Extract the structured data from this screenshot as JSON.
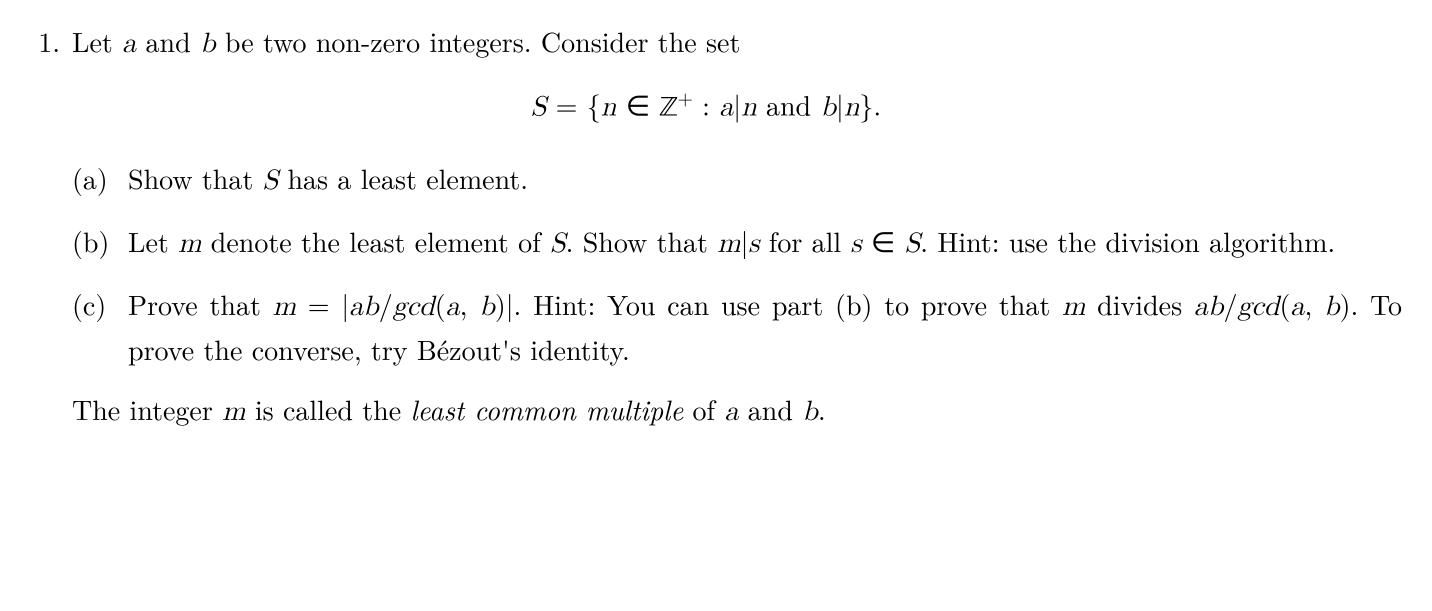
{
  "problem": {
    "number": "1.",
    "intro_prefix": "Let ",
    "var_a": "a",
    "intro_and": " and ",
    "var_b": "b",
    "intro_suffix": " be two non-zero integers. Consider the set",
    "equation": {
      "S": "S",
      "eq": " = {",
      "n": "n",
      "in": " ∈ ",
      "Z": "ℤ",
      "plus": "+",
      "colon": " : ",
      "a": "a",
      "div1": "|",
      "n2": "n",
      "and": " and ",
      "b": "b",
      "div2": "|",
      "n3": "n",
      "close": "}."
    },
    "parts": {
      "a": {
        "label": "(a)",
        "text_pre": "Show that ",
        "S": "S",
        "text_post": " has a least element."
      },
      "b": {
        "label": "(b)",
        "t1": "Let ",
        "m": "m",
        "t2": " denote the least element of ",
        "S": "S",
        "t3": ". Show that ",
        "m2": "m",
        "div": "|",
        "s": "s",
        "t4": " for all ",
        "s2": "s",
        "in": " ∈ ",
        "S2": "S",
        "t5": ". Hint: use the division algorithm."
      },
      "c": {
        "label": "(c)",
        "t1": "Prove that ",
        "m": "m",
        "eq": " = |",
        "ab": "ab",
        "slash": "/",
        "gcd1": "gcd",
        "paren1": "(",
        "a1": "a",
        "comma1": ", ",
        "b1": "b",
        "paren1c": ")|",
        "t2": ". Hint: You can use part (b) to prove that ",
        "m2": "m",
        "t3": " divides ",
        "ab2": "ab",
        "slash2": "/",
        "gcd2": "gcd",
        "paren2": "(",
        "a2": "a",
        "comma2": ", ",
        "b2": "b",
        "paren2c": ")",
        "t4": ". To prove the converse, try Bézout's identity."
      }
    },
    "footer": {
      "t1": "The integer ",
      "m": "m",
      "t2": " is called the ",
      "term": "least common multiple",
      "t3": " of ",
      "a": "a",
      "and": " and ",
      "b": "b",
      "period": "."
    }
  }
}
